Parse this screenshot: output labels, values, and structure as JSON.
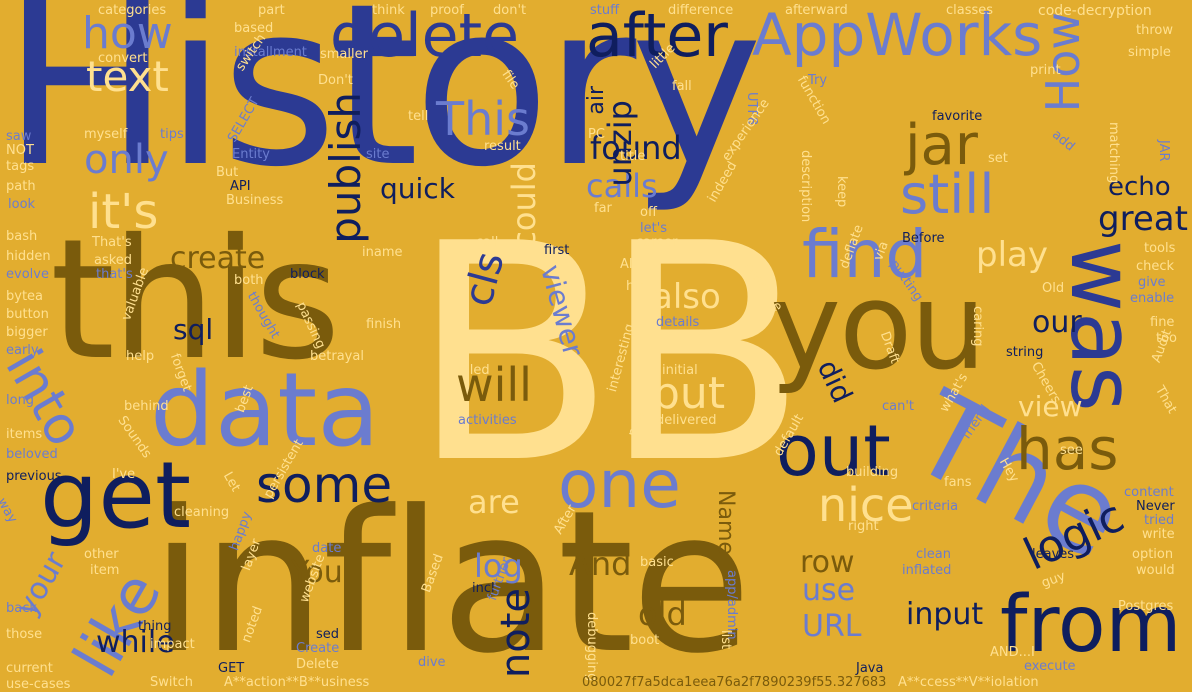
{
  "cloud": {
    "background": "#e2ad2f",
    "words": {
      "history": "History",
      "bb": "BB",
      "inflate": "inflate",
      "this": "this",
      "data": "data",
      "get": "get",
      "find": "find",
      "you": "you",
      "was": "was",
      "the": "The",
      "from": "from",
      "out": "out",
      "one": "one",
      "like": "like",
      "into": "into",
      "appworks": "AppWorks",
      "delete": "delete",
      "after": "after",
      "how_lower": "how",
      "how_upper": "How",
      "text": "text",
      "only": "only",
      "its": "it's",
      "this_title": "This",
      "jar": "jar",
      "still": "still",
      "publish": "publish",
      "some": "some",
      "has": "has",
      "logic": "logic",
      "nice": "nice",
      "but": "but",
      "will": "will",
      "also": "also",
      "are": "are",
      "our": "our",
      "view": "view",
      "play": "play",
      "great": "great",
      "echo": "echo",
      "found": "found",
      "calls": "calls",
      "quick": "quick",
      "cls": "cls",
      "sql": "sql",
      "create": "create",
      "unzip": "unzip",
      "air": "air",
      "could": "could",
      "viewer": "viewer",
      "did": "did",
      "log": "log",
      "you_title": "You",
      "and": "And",
      "old": "old",
      "note": "note",
      "while": "while",
      "your": "your",
      "row": "row",
      "use": "use",
      "url": "URL",
      "input": "input",
      "name": "Name",
      "categories": "categories",
      "part": "part",
      "think": "think",
      "proof": "proof",
      "dont": "don't",
      "stuff": "stuff",
      "difference": "difference",
      "afterward": "afterward",
      "classes": "classes",
      "code_decryption": "code-decryption",
      "throw": "throw",
      "based": "based",
      "installment": "installment",
      "convert": "convert",
      "switch": "switch",
      "smaller": "smaller",
      "file": "file",
      "little": "little",
      "print": "print",
      "simple": "simple",
      "dont_title": "Don't",
      "try": "Try",
      "function": "function",
      "fall": "fall",
      "saw": "saw",
      "myself": "myself",
      "tips": "tips",
      "select": "SELECT",
      "tell": "tell",
      "utf8": "UTF8",
      "favorite": "favorite",
      "add": "add",
      "not": "NOT",
      "tags": "tags",
      "entity": "Entity",
      "but_title": "But",
      "site": "site",
      "result": "result",
      "pc": "PC",
      "experience": "experience",
      "title": "title",
      "set": "set",
      "matching": "matching",
      "jar_caps": "JAR",
      "path": "path",
      "api": "API",
      "description": "description",
      "look": "look",
      "business": "Business",
      "far": "far",
      "off": "off",
      "lets": "let's",
      "indeed": "indeed",
      "keep": "keep",
      "bash": "bash",
      "thats_title": "That's",
      "call": "call",
      "career": "career",
      "before": "Before",
      "tools": "tools",
      "hidden": "hidden",
      "asked": "asked",
      "iname": "iname",
      "first": "first",
      "check": "check",
      "evolve": "evolve",
      "thats": "that's",
      "all": "All",
      "hit": "hit",
      "give": "give",
      "both": "both",
      "block": "block",
      "continue": "continue",
      "deflate": "deflate",
      "via": "via",
      "putting": "putting",
      "bytea": "bytea",
      "enable": "enable",
      "old_title": "Old",
      "button": "button",
      "thought": "thought",
      "details": "details",
      "bigger": "bigger",
      "finish": "finish",
      "passing": "passing",
      "fine": "fine",
      "caring": "caring",
      "valuable": "valuable",
      "too": "too",
      "early": "early",
      "draft": "Draft",
      "string": "string",
      "help": "help",
      "filled": "filled",
      "initial": "initial",
      "betrayal": "betrayal",
      "cheers": "Cheers",
      "forget": "forget",
      "audit": "Audit",
      "that_title": "That",
      "long": "long",
      "behind": "behind",
      "activities": "activities",
      "delivered": "delivered",
      "cant": "can't",
      "items": "items",
      "sounds": "Sounds",
      "best": "best",
      "interesting": "interesting",
      "whats": "what's",
      "beloved": "beloved",
      "new": "new",
      "see": "see",
      "ive": "I've",
      "friend": "friend",
      "previous": "previous",
      "let": "Let",
      "default": "default",
      "hey": "Hey",
      "fans": "fans",
      "building": "building",
      "content": "content",
      "way": "way",
      "cleaning": "cleaning",
      "persistent": "persistent",
      "right": "right",
      "criteria": "criteria",
      "never": "Never",
      "tried": "tried",
      "write": "write",
      "after_title": "After",
      "other": "other",
      "happy": "happy",
      "date": "date",
      "clean": "clean",
      "leaves": "leaves",
      "option": "option",
      "item": "item",
      "basic": "basic",
      "inflated": "inflated",
      "would": "would",
      "guy": "guy",
      "layer": "layer",
      "incl": "incl",
      "postgres": "Postgres",
      "back": "back",
      "further": "further",
      "website": "website",
      "based_title": "Based",
      "debugging": "debugging",
      "app_admin": "app/admin",
      "noted": "noted",
      "thing": "thing",
      "those": "those",
      "impact": "impact",
      "sed": "sed",
      "create_title": "Create",
      "boot": "boot",
      "list": "list",
      "execute": "execute",
      "current": "current",
      "get_caps": "GET",
      "delete_title": "Delete",
      "dive": "dive",
      "java": "Java",
      "use_cases": "use-cases",
      "switch_title": "Switch",
      "action_business": "A**action**B**usiness",
      "hash": "080027f7a5dca1eea76a2f7890239f55.327683",
      "access_violation": "A**ccess**V**iolation",
      "and_caps": "AND...I"
    }
  }
}
